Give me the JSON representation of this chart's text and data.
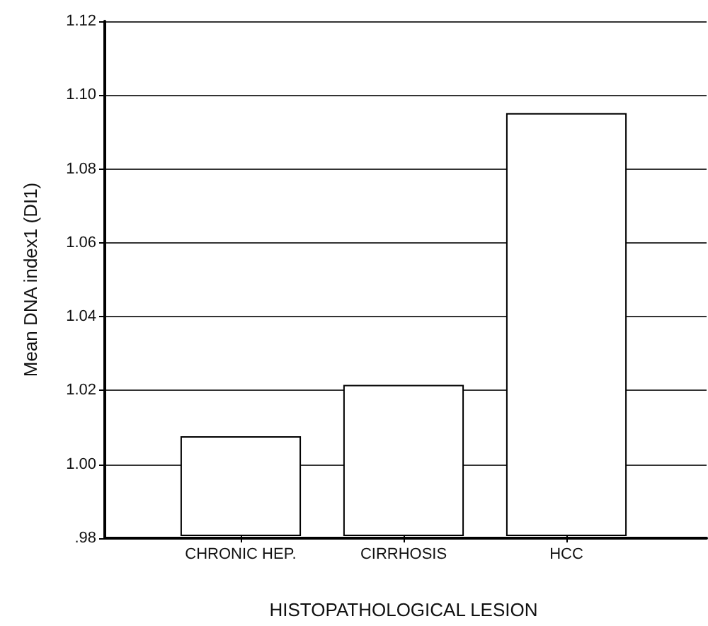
{
  "chart_data": {
    "type": "bar",
    "xlabel": "HISTOPATHOLOGICAL LESION",
    "ylabel": "Mean DNA index1 (DI1)",
    "categories": [
      "CHRONIC HEP.",
      "CIRRHOSIS",
      "HCC"
    ],
    "values": [
      1.007,
      1.021,
      1.095
    ],
    "color": "#ffffff",
    "ylim": [
      0.98,
      1.12
    ],
    "yticks": [
      {
        "value": 0.98,
        "label": ".98"
      },
      {
        "value": 1,
        "label": "1.00"
      },
      1.02,
      1.04,
      1.06,
      1.08,
      {
        "value": 1.1,
        "label": "1.10"
      },
      1.12
    ],
    "grid": "y"
  }
}
